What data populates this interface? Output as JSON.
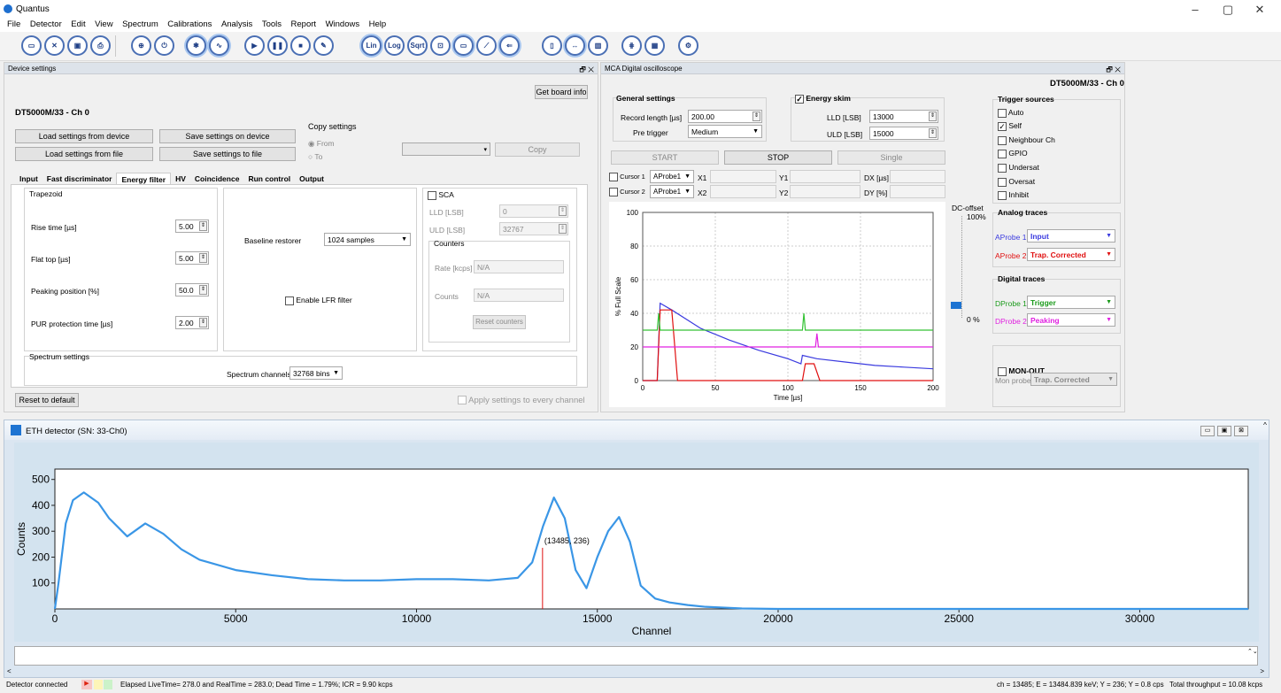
{
  "app": {
    "title": "Quantus"
  },
  "menu": [
    "File",
    "Detector",
    "Edit",
    "View",
    "Spectrum",
    "Calibrations",
    "Analysis",
    "Tools",
    "Report",
    "Windows",
    "Help"
  ],
  "toolbar": {
    "lin": "Lin",
    "log": "Log",
    "sqrt": "Sqrt"
  },
  "device_panel": {
    "header": "Device settings",
    "get_board_info": "Get board info",
    "device_title": "DT5000M/33 - Ch 0",
    "load_device": "Load settings from device",
    "save_device": "Save settings on device",
    "load_file": "Load settings from file",
    "save_file": "Save settings to file",
    "copy_settings": "Copy settings",
    "from": "From",
    "to": "To",
    "copy": "Copy",
    "tabs": [
      "Input",
      "Fast discriminator",
      "Energy filter",
      "HV",
      "Coincidence",
      "Run control",
      "Output"
    ],
    "trapezoid": "Trapezoid",
    "rise_time_label": "Rise time [µs]",
    "rise_time": "5.00",
    "flat_top_label": "Flat top [µs]",
    "flat_top": "5.00",
    "peaking_label": "Peaking position [%]",
    "peaking": "50.0",
    "pur_label": "PUR protection time [µs]",
    "pur": "2.00",
    "baseline_label": "Baseline restorer",
    "baseline": "1024 samples",
    "lfr": "Enable LFR filter",
    "sca": "SCA",
    "sca_lld_label": "LLD [LSB]",
    "sca_lld": "0",
    "sca_uld_label": "ULD [LSB]",
    "sca_uld": "32767",
    "counters": "Counters",
    "rate_label": "Rate [kcps]",
    "rate": "N/A",
    "counts_label": "Counts",
    "counts": "N/A",
    "reset_counters": "Reset counters",
    "spectrum_settings": "Spectrum settings",
    "spectrum_channels_label": "Spectrum channels",
    "spectrum_channels": "32768 bins",
    "reset_default": "Reset to default",
    "apply_all": "Apply settings to every channel"
  },
  "osc_panel": {
    "header": "MCA Digital oscilloscope",
    "device_title": "DT5000M/33 - Ch 0",
    "general": "General settings",
    "record_length_label": "Record length [µs]",
    "record_length": "200.00",
    "pre_trigger_label": "Pre trigger",
    "pre_trigger": "Medium",
    "energy_skim": "Energy skim",
    "lld_label": "LLD [LSB]",
    "lld": "13000",
    "uld_label": "ULD [LSB]",
    "uld": "15000",
    "start": "START",
    "stop": "STOP",
    "single": "Single",
    "cursor1": "Cursor 1",
    "cursor2": "Cursor 2",
    "aprobe": "AProbe1",
    "x1": "X1",
    "x2": "X2",
    "y1": "Y1",
    "y2": "Y2",
    "dx": "DX [µs]",
    "dy": "DY [%]",
    "dc_offset": "DC-offset",
    "dc_100": "100%",
    "dc_0": "0 %",
    "trigger_sources": "Trigger sources",
    "triggers": [
      {
        "label": "Auto",
        "checked": false
      },
      {
        "label": "Self",
        "checked": true
      },
      {
        "label": "Neighbour Ch",
        "checked": false
      },
      {
        "label": "GPIO",
        "checked": false
      },
      {
        "label": "Undersat",
        "checked": false
      },
      {
        "label": "Oversat",
        "checked": false
      },
      {
        "label": "Inhibit",
        "checked": false
      }
    ],
    "analog_traces": "Analog traces",
    "aprobe1_label": "AProbe 1",
    "aprobe1": "Input",
    "aprobe2_label": "AProbe 2",
    "aprobe2": "Trap. Corrected",
    "digital_traces": "Digital traces",
    "dprobe1_label": "DProbe 1",
    "dprobe1": "Trigger",
    "dprobe2_label": "DProbe 2",
    "dprobe2": "Peaking",
    "mon_out": "MON-OUT",
    "mon_probe_label": "Mon probe",
    "mon_probe": "Trap. Corrected",
    "colors": {
      "input": "#3a3adf",
      "trap": "#e01010",
      "trigger": "#34c234",
      "peaking": "#e020e0"
    }
  },
  "spectrum_window": {
    "title": "ETH detector (SN: 33-Ch0)",
    "cursor_label": "(13485, 236)"
  },
  "chart_data": [
    {
      "type": "line",
      "xlabel": "Time [µs]",
      "ylabel": "% Full Scale",
      "xlim": [
        0,
        200
      ],
      "ylim": [
        0,
        100
      ],
      "xticks": [
        0,
        50,
        100,
        150,
        200
      ],
      "yticks": [
        0,
        20,
        40,
        60,
        80,
        100
      ],
      "series": [
        {
          "x": [
            0,
            10,
            12,
            20,
            40,
            60,
            80,
            100,
            109,
            110,
            120,
            140,
            160,
            180,
            200
          ],
          "y": [
            0,
            0,
            46,
            42,
            31,
            24,
            18,
            13,
            10,
            15,
            13,
            11,
            9,
            8,
            7
          ]
        },
        {
          "x": [
            0,
            10,
            12,
            20,
            24,
            26,
            110,
            112,
            118,
            122,
            124,
            200
          ],
          "y": [
            0,
            0,
            42,
            42,
            0,
            0,
            0,
            10,
            10,
            0,
            0,
            0
          ]
        },
        {
          "x": [
            0,
            10,
            11,
            12,
            110,
            111,
            112,
            200
          ],
          "y": [
            30,
            30,
            40,
            30,
            30,
            40,
            30,
            30
          ]
        },
        {
          "x": [
            0,
            119,
            120,
            121,
            200
          ],
          "y": [
            20,
            20,
            28,
            20,
            20
          ]
        }
      ]
    },
    {
      "type": "line",
      "xlabel": "Channel",
      "ylabel": "Counts",
      "xlim": [
        0,
        33000
      ],
      "ylim": [
        0,
        540
      ],
      "xticks": [
        0,
        5000,
        10000,
        15000,
        20000,
        25000,
        30000
      ],
      "yticks": [
        100,
        200,
        300,
        400,
        500
      ],
      "series": [
        {
          "x": [
            0,
            100,
            300,
            500,
            800,
            1200,
            1500,
            2000,
            2500,
            3000,
            3500,
            4000,
            5000,
            6000,
            7000,
            8000,
            9000,
            10000,
            11000,
            12000,
            12800,
            13200,
            13500,
            13800,
            14100,
            14400,
            14700,
            15000,
            15300,
            15600,
            15900,
            16200,
            16600,
            17000,
            17500,
            18000,
            19000,
            20000,
            33000
          ],
          "y": [
            0,
            100,
            330,
            420,
            450,
            410,
            350,
            280,
            330,
            290,
            230,
            190,
            150,
            130,
            115,
            110,
            110,
            115,
            115,
            110,
            120,
            180,
            320,
            430,
            350,
            150,
            80,
            200,
            300,
            355,
            260,
            90,
            40,
            25,
            15,
            8,
            2,
            0,
            0
          ]
        }
      ],
      "cursor": {
        "x": 13485,
        "y": 236
      }
    }
  ],
  "status": {
    "connected": "Detector connected",
    "times": "Elapsed LiveTime= 278.0 and RealTime = 283.0; Dead Time = 1.79%; ICR = 9.90 kcps",
    "cursor": "ch = 13485; E = 13484.839 keV; Y = 236; Y = 0.8 cps",
    "throughput": "Total throughput = 10.08 kcps"
  }
}
